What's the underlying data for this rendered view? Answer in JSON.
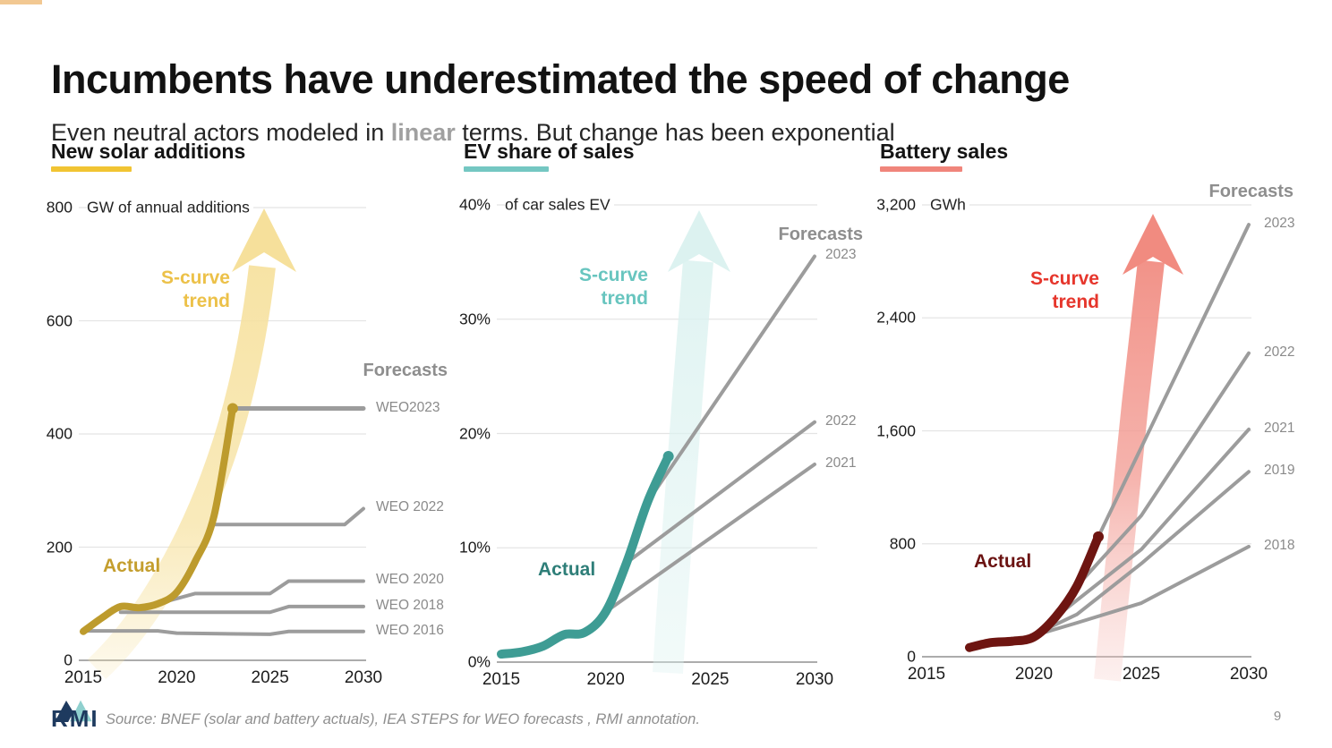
{
  "slide": {
    "title": "Incumbents have underestimated the speed of change",
    "subtitle_prefix": "Even neutral actors modeled in ",
    "subtitle_emphasis": "linear",
    "subtitle_suffix": " terms. But change has been exponential",
    "source_text": "Source: BNEF (solar and battery actuals), IEA STEPS for WEO forecasts , RMI annotation.",
    "logo_text": "RMI",
    "page_number": "9",
    "accent_dash_color": "#F2C892",
    "gridline_color": "#E4E4E4",
    "axis_color": "#ACACAC",
    "forecast_line_color": "#9C9C9C"
  },
  "chart_data": [
    {
      "id": "solar",
      "type": "line",
      "title": "New solar additions",
      "unit_label": "GW of annual additions",
      "accent_color": "#F1C433",
      "xlim": [
        2015,
        2030
      ],
      "ylim": [
        0,
        800
      ],
      "x_ticks": [
        2015,
        2020,
        2025,
        2030
      ],
      "y_ticks": [
        {
          "v": 800,
          "label": "800"
        },
        {
          "v": 600,
          "label": "600"
        },
        {
          "v": 400,
          "label": "400"
        },
        {
          "v": 200,
          "label": "200"
        },
        {
          "v": 0,
          "label": "0"
        }
      ],
      "actual": {
        "label": "Actual",
        "color": "#BD9B2D",
        "label_color": "#C49E2E",
        "points": [
          [
            2015,
            51
          ],
          [
            2016,
            75
          ],
          [
            2017,
            95
          ],
          [
            2018,
            93
          ],
          [
            2019,
            100
          ],
          [
            2020,
            120
          ],
          [
            2021,
            175
          ],
          [
            2022,
            255
          ],
          [
            2023,
            445
          ]
        ]
      },
      "scurve": {
        "label_lines": "S-curve\ntrend",
        "color": "#ECC149",
        "arrow_color": "#F7E3A4"
      },
      "forecasts_heading": "Forecasts",
      "forecasts": [
        {
          "label": "WEO2023",
          "width": 5,
          "points": [
            [
              2023,
              445
            ],
            [
              2030,
              445
            ]
          ]
        },
        {
          "label": "WEO 2022",
          "width": 4,
          "points": [
            [
              2022,
              240
            ],
            [
              2029,
              240
            ],
            [
              2030,
              268
            ]
          ]
        },
        {
          "label": "WEO 2020",
          "width": 4,
          "points": [
            [
              2019,
              100
            ],
            [
              2021,
              118
            ],
            [
              2025,
              118
            ],
            [
              2026,
              140
            ],
            [
              2030,
              140
            ]
          ]
        },
        {
          "label": "WEO 2018",
          "width": 4,
          "points": [
            [
              2017,
              85
            ],
            [
              2025,
              85
            ],
            [
              2026,
              95
            ],
            [
              2030,
              95
            ]
          ]
        },
        {
          "label": "WEO 2016",
          "width": 4,
          "points": [
            [
              2015,
              52
            ],
            [
              2019,
              52
            ],
            [
              2020,
              48
            ],
            [
              2025,
              46
            ],
            [
              2026,
              51
            ],
            [
              2030,
              51
            ]
          ]
        }
      ]
    },
    {
      "id": "ev",
      "type": "line",
      "title": "EV share of sales",
      "unit_label": "of car sales EV",
      "accent_color": "#74C7C2",
      "xlim": [
        2015,
        2030
      ],
      "ylim": [
        0,
        40
      ],
      "x_ticks": [
        2015,
        2020,
        2025,
        2030
      ],
      "y_ticks": [
        {
          "v": 40,
          "label": "40%"
        },
        {
          "v": 30,
          "label": "30%"
        },
        {
          "v": 20,
          "label": "20%"
        },
        {
          "v": 10,
          "label": "10%"
        },
        {
          "v": 0,
          "label": "0%"
        }
      ],
      "actual": {
        "label": "Actual",
        "color": "#3E9C94",
        "label_color": "#2E7E78",
        "points": [
          [
            2015,
            0.7
          ],
          [
            2016,
            0.9
          ],
          [
            2017,
            1.4
          ],
          [
            2018,
            2.4
          ],
          [
            2019,
            2.6
          ],
          [
            2020,
            4.4
          ],
          [
            2021,
            8.7
          ],
          [
            2022,
            14
          ],
          [
            2023,
            18
          ]
        ]
      },
      "scurve": {
        "label_lines": "S-curve\ntrend",
        "color": "#68C5BF",
        "arrow_color": "#DCF2F0"
      },
      "forecasts_heading": "Forecasts",
      "forecasts": [
        {
          "label": "2023",
          "width": 4,
          "points": [
            [
              2022,
              14
            ],
            [
              2030,
              35.5
            ]
          ]
        },
        {
          "label": "2022",
          "width": 4,
          "points": [
            [
              2021,
              8.7
            ],
            [
              2030,
              21
            ]
          ]
        },
        {
          "label": "2021",
          "width": 4,
          "points": [
            [
              2020,
              4.4
            ],
            [
              2030,
              17.3
            ]
          ]
        }
      ]
    },
    {
      "id": "battery",
      "type": "line",
      "title": "Battery sales",
      "unit_label": "GWh",
      "accent_color": "#F0857B",
      "xlim": [
        2015,
        2030
      ],
      "ylim": [
        0,
        3200
      ],
      "x_ticks": [
        2015,
        2020,
        2025,
        2030
      ],
      "y_ticks": [
        {
          "v": 3200,
          "label": "3,200"
        },
        {
          "v": 2400,
          "label": "2,400"
        },
        {
          "v": 1600,
          "label": "1,600"
        },
        {
          "v": 800,
          "label": "800"
        },
        {
          "v": 0,
          "label": "0"
        }
      ],
      "actual": {
        "label": "Actual",
        "color": "#6E1511",
        "label_color": "#6B1312",
        "points": [
          [
            2017,
            65
          ],
          [
            2018,
            100
          ],
          [
            2019,
            110
          ],
          [
            2020,
            140
          ],
          [
            2021,
            280
          ],
          [
            2022,
            500
          ],
          [
            2023,
            850
          ]
        ]
      },
      "scurve": {
        "label_lines": "S-curve\ntrend",
        "color": "#E6362C",
        "arrow_color": "#F18B80"
      },
      "forecasts_heading": "Forecasts",
      "forecasts": [
        {
          "label": "2023",
          "width": 4,
          "points": [
            [
              2023,
              850
            ],
            [
              2026,
              1800
            ],
            [
              2030,
              3060
            ]
          ]
        },
        {
          "label": "2022",
          "width": 4,
          "points": [
            [
              2022,
              500
            ],
            [
              2025,
              1000
            ],
            [
              2030,
              2150
            ]
          ]
        },
        {
          "label": "2021",
          "width": 4,
          "points": [
            [
              2021,
              280
            ],
            [
              2023,
              520
            ],
            [
              2025,
              760
            ],
            [
              2030,
              1610
            ]
          ]
        },
        {
          "label": "2019",
          "width": 4,
          "points": [
            [
              2020,
              155
            ],
            [
              2022,
              300
            ],
            [
              2025,
              660
            ],
            [
              2030,
              1310
            ]
          ]
        },
        {
          "label": "2018",
          "width": 4,
          "points": [
            [
              2020,
              150
            ],
            [
              2022,
              240
            ],
            [
              2025,
              380
            ],
            [
              2030,
              780
            ]
          ]
        }
      ]
    }
  ]
}
